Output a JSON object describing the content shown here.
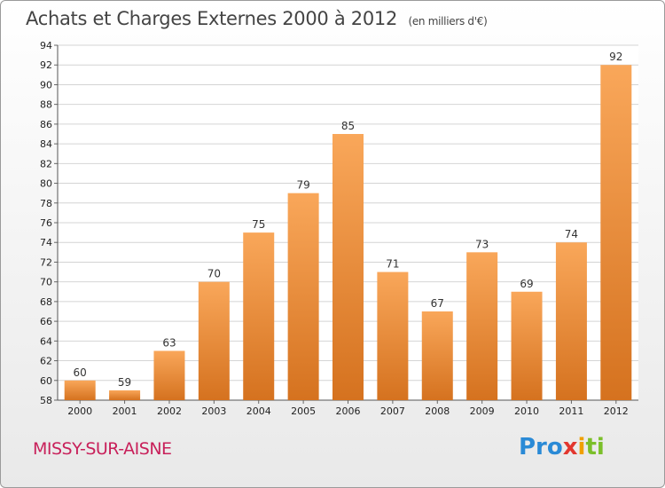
{
  "header": {
    "title": "Achats et Charges Externes 2000 à 2012",
    "unit": "(en milliers d'€)"
  },
  "footer": {
    "location": "MISSY-SUR-AISNE",
    "logo_parts": [
      "Pro",
      "x",
      "i",
      "ti"
    ]
  },
  "colors": {
    "bar_light": "#f9a75a",
    "bar_dark": "#d5721f",
    "location": "#c8205a"
  },
  "chart_data": {
    "type": "bar",
    "title": "Achats et Charges Externes 2000 à 2012",
    "subtitle": "(en milliers d'€)",
    "xlabel": "",
    "ylabel": "",
    "categories": [
      "2000",
      "2001",
      "2002",
      "2003",
      "2004",
      "2005",
      "2006",
      "2007",
      "2008",
      "2009",
      "2010",
      "2011",
      "2012"
    ],
    "values": [
      60,
      59,
      63,
      70,
      75,
      79,
      85,
      71,
      67,
      73,
      69,
      74,
      92
    ],
    "ylim": [
      58,
      94
    ],
    "yticks": [
      58,
      60,
      62,
      64,
      66,
      68,
      70,
      72,
      74,
      76,
      78,
      80,
      82,
      84,
      86,
      88,
      90,
      92,
      94
    ],
    "grid": true,
    "legend": "none"
  }
}
